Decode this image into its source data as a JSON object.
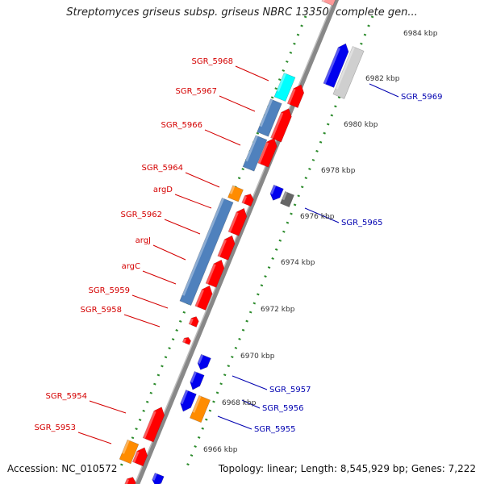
{
  "title": "Streptomyces griseus subsp. griseus NBRC 13350, complete gen...",
  "footer": {
    "accession": "Accession: NC_010572",
    "topology": "Topology: linear; Length: 8,545,929 bp; Genes: 7,222"
  },
  "scale_labels": [
    "6984 kbp",
    "6982 kbp",
    "6980 kbp",
    "6978 kbp",
    "6976 kbp",
    "6974 kbp",
    "6972 kbp",
    "6970 kbp",
    "6968 kbp",
    "6966 kbp"
  ],
  "gene_labels_left": [
    "SGR_5968",
    "SGR_5967",
    "SGR_5966",
    "SGR_5964",
    "argD",
    "SGR_5962",
    "argJ",
    "argC",
    "SGR_5959",
    "SGR_5958",
    "SGR_5954",
    "SGR_5953"
  ],
  "gene_labels_right": [
    "SGR_5969",
    "SGR_5965",
    "SGR_5957",
    "SGR_5956",
    "SGR_5955"
  ],
  "colors": {
    "forward_gene": "#ff0000",
    "reverse_gene": "#0000ee",
    "backbone": "#888888",
    "ticks": "#2a8a2a",
    "label_red": "#d40000",
    "label_blue": "#0000b0"
  }
}
